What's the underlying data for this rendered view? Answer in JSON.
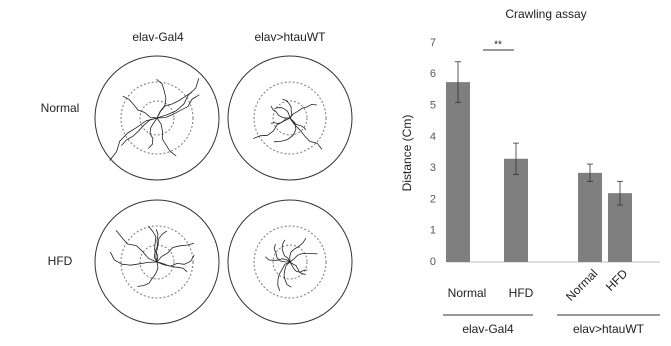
{
  "panel": {
    "columns": [
      "elav-Gal4",
      "elav>htauWT"
    ],
    "rows": [
      "Normal",
      "HFD"
    ]
  },
  "chart_data": {
    "type": "bar",
    "title": "Crawling assay",
    "y_label": "Distance (Cm)",
    "categories": [
      "Normal",
      "HFD",
      "Normal",
      "HFD"
    ],
    "groups": [
      "elav-Gal4",
      "elav>htauWT"
    ],
    "values": [
      5.75,
      3.3,
      2.85,
      2.2
    ],
    "errors": [
      0.65,
      0.5,
      0.28,
      0.38
    ],
    "color": "#7f7f7f",
    "significance": "**",
    "ylim": [
      0,
      7
    ],
    "yticks": [
      0,
      1,
      2,
      3,
      4,
      5,
      6,
      7
    ],
    "grid": false
  }
}
